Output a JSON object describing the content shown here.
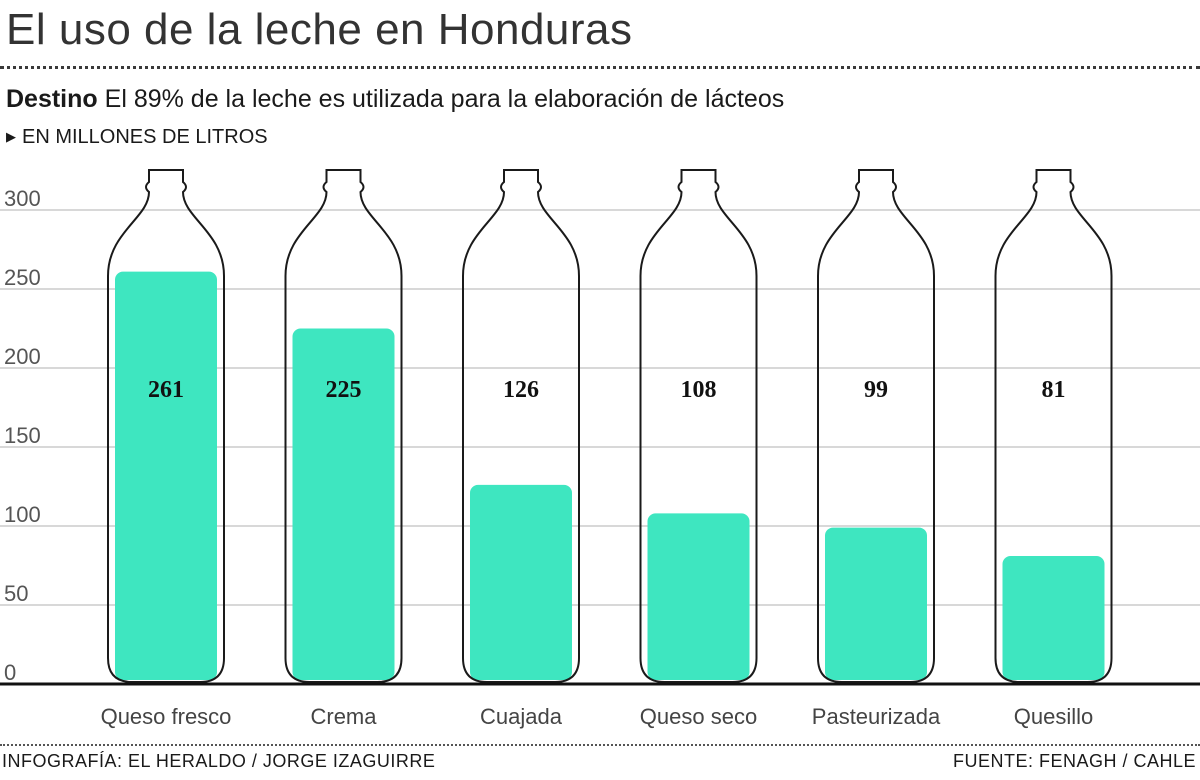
{
  "title": "El uso de la leche en Honduras",
  "subtitle": {
    "keyword": "Destino",
    "text": "El 89% de la leche es utilizada para la elaboración de lácteos"
  },
  "unit_label": "EN MILLONES DE LITROS",
  "colors": {
    "fill": "#3ee6c0",
    "bottle_outline": "#1a1a1a",
    "grid": "#cccccc",
    "baseline": "#111111"
  },
  "chart_data": {
    "type": "bar",
    "title": "El uso de la leche en Honduras",
    "ylabel": "EN MILLONES DE LITROS",
    "xlabel": "",
    "categories": [
      "Queso fresco",
      "Crema",
      "Cuajada",
      "Queso seco",
      "Pasteurizada",
      "Quesillo"
    ],
    "values": [
      261,
      225,
      126,
      108,
      99,
      81
    ],
    "value_labels": [
      "261",
      "225",
      "126",
      "108",
      "99",
      "81"
    ],
    "ylim": [
      0,
      300
    ],
    "yticks": [
      0,
      50,
      100,
      150,
      200,
      250,
      300
    ],
    "grid": true,
    "legend": "none"
  },
  "footer": {
    "credit": "INFOGRAFÍA: EL HERALDO / JORGE IZAGUIRRE",
    "source": "FUENTE: FENAGH / CAHLE"
  }
}
